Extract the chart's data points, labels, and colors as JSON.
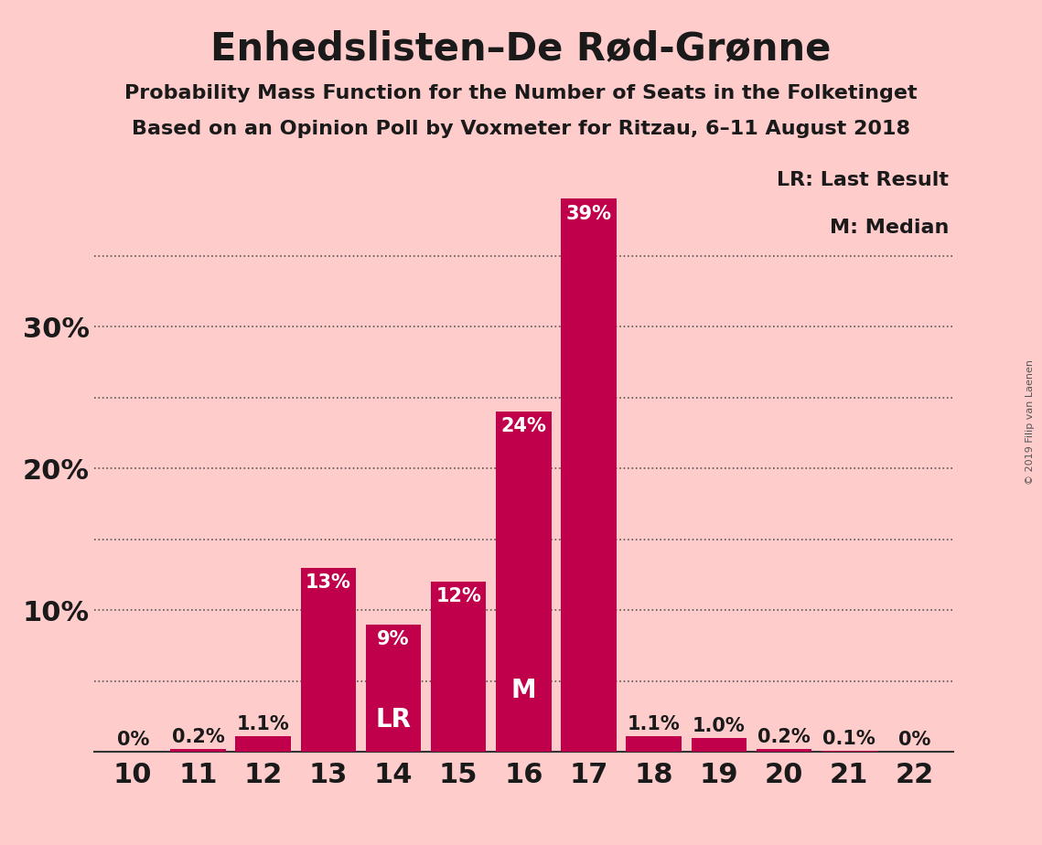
{
  "title": "Enhedslisten–De Rød-Grønne",
  "subtitle1": "Probability Mass Function for the Number of Seats in the Folketinget",
  "subtitle2": "Based on an Opinion Poll by Voxmeter for Ritzau, 6–11 August 2018",
  "copyright": "© 2019 Filip van Laenen",
  "seats": [
    10,
    11,
    12,
    13,
    14,
    15,
    16,
    17,
    18,
    19,
    20,
    21,
    22
  ],
  "probabilities": [
    0.0,
    0.2,
    1.1,
    13.0,
    9.0,
    12.0,
    24.0,
    39.0,
    1.1,
    1.0,
    0.2,
    0.1,
    0.0
  ],
  "labels": [
    "0%",
    "0.2%",
    "1.1%",
    "13%",
    "9%",
    "12%",
    "24%",
    "39%",
    "1.1%",
    "1.0%",
    "0.2%",
    "0.1%",
    "0%"
  ],
  "bar_color": "#C0004B",
  "background_color": "#FFCCCC",
  "text_color": "#1a1a1a",
  "bar_label_color_outside": "#1a1a1a",
  "bar_label_color_inside": "#ffffff",
  "lr_seat": 14,
  "median_seat": 16,
  "grid_ticks": [
    5,
    10,
    15,
    20,
    25,
    30,
    35
  ],
  "ytick_positions": [
    10,
    20,
    30
  ],
  "ytick_labels": [
    "10%",
    "20%",
    "30%"
  ],
  "ylim": [
    0,
    42
  ],
  "legend_text1": "LR: Last Result",
  "legend_text2": "M: Median",
  "title_fontsize": 30,
  "subtitle_fontsize": 16,
  "axis_label_fontsize": 22,
  "bar_label_fontsize": 15,
  "ytick_fontsize": 22,
  "lr_m_fontsize": 20
}
